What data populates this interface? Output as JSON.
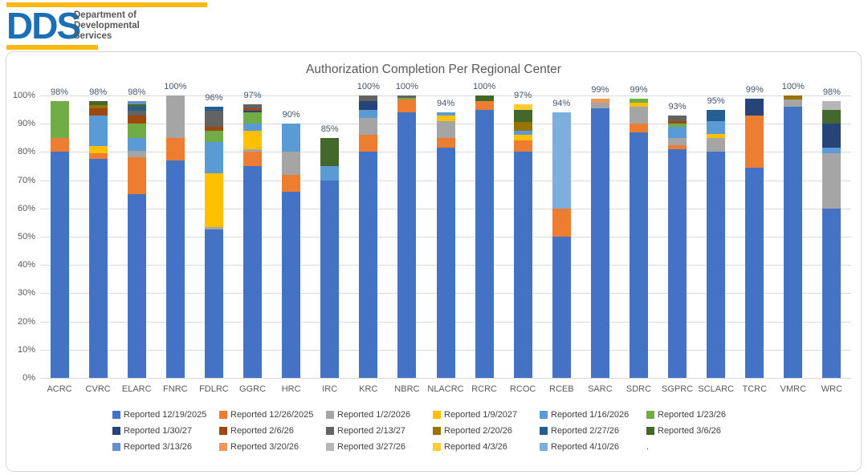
{
  "header": {
    "logo_acronym": "DDS",
    "logo_lines": "Department of\nDevelopmental\nServices",
    "logo_blue": "#1B6FB5",
    "logo_yellow": "#FDB813"
  },
  "chart_data": {
    "type": "bar",
    "subtype": "stacked-percent",
    "title": "Authorization Completion Per Regional Center",
    "xlabel": "",
    "ylabel": "",
    "ylim": [
      0,
      100
    ],
    "ytick_labels": [
      "0%",
      "10%",
      "20%",
      "30%",
      "40%",
      "50%",
      "60%",
      "70%",
      "80%",
      "90%",
      "100%"
    ],
    "grid": true,
    "legend_position": "bottom",
    "series": [
      {
        "name": "Reported 12/19/2025",
        "color": "#4472C4"
      },
      {
        "name": "Reported 12/26/2025",
        "color": "#ED7D31"
      },
      {
        "name": "Reported 1/2/2026",
        "color": "#A5A5A5"
      },
      {
        "name": "Reported 1/9/2027",
        "color": "#FFC000"
      },
      {
        "name": "Reported 1/16/2026",
        "color": "#5B9BD5"
      },
      {
        "name": "Reported 1/23/26",
        "color": "#70AD47"
      },
      {
        "name": "Reported 1/30/27",
        "color": "#264478"
      },
      {
        "name": "Reported 2/6/26",
        "color": "#9E480E"
      },
      {
        "name": "Reported 2/13/27",
        "color": "#636363"
      },
      {
        "name": "Reported 2/20/26",
        "color": "#997300"
      },
      {
        "name": "Reported 2/27/26",
        "color": "#255E91"
      },
      {
        "name": "Reported 3/6/26",
        "color": "#43682B"
      },
      {
        "name": "Reported 3/13/26",
        "color": "#698ED0"
      },
      {
        "name": "Reported 3/20/26",
        "color": "#F1975A"
      },
      {
        "name": "Reported 3/27/26",
        "color": "#B7B7B7"
      },
      {
        "name": "Reported 4/3/26",
        "color": "#FFCD33"
      },
      {
        "name": "Reported 4/10/26",
        "color": "#7CAFDD"
      }
    ],
    "categories": [
      "ACRC",
      "CVRC",
      "ELARC",
      "FNRC",
      "FDLRC",
      "GGRC",
      "HRC",
      "IRC",
      "KRC",
      "NBRC",
      "NLACRC",
      "RCRC",
      "RCOC",
      "RCEB",
      "SARC",
      "SDRC",
      "SGPRC",
      "SCLARC",
      "TCRC",
      "VMRC",
      "WRC"
    ],
    "bars": [
      {
        "category": "ACRC",
        "total_label": "98%",
        "segments": [
          {
            "series": "Reported 12/19/2025",
            "value": 80
          },
          {
            "series": "Reported 12/26/2025",
            "value": 5
          },
          {
            "series": "Reported 1/23/26",
            "value": 13
          }
        ]
      },
      {
        "category": "CVRC",
        "total_label": "98%",
        "segments": [
          {
            "series": "Reported 12/19/2025",
            "value": 77.5
          },
          {
            "series": "Reported 12/26/2025",
            "value": 2
          },
          {
            "series": "Reported 1/9/2027",
            "value": 2.5
          },
          {
            "series": "Reported 1/16/2026",
            "value": 11
          },
          {
            "series": "Reported 2/6/26",
            "value": 2.5
          },
          {
            "series": "Reported 2/20/26",
            "value": 1
          },
          {
            "series": "Reported 3/6/26",
            "value": 1.5
          }
        ]
      },
      {
        "category": "ELARC",
        "total_label": "98%",
        "segments": [
          {
            "series": "Reported 12/19/2025",
            "value": 65
          },
          {
            "series": "Reported 12/26/2025",
            "value": 13
          },
          {
            "series": "Reported 1/2/2026",
            "value": 2.5
          },
          {
            "series": "Reported 1/16/2026",
            "value": 4.5
          },
          {
            "series": "Reported 1/23/26",
            "value": 5
          },
          {
            "series": "Reported 2/6/26",
            "value": 3
          },
          {
            "series": "Reported 2/13/27",
            "value": 1.5
          },
          {
            "series": "Reported 2/27/26",
            "value": 1.5
          },
          {
            "series": "Reported 3/6/26",
            "value": 1
          },
          {
            "series": "Reported 3/13/26",
            "value": 1
          }
        ]
      },
      {
        "category": "FNRC",
        "total_label": "100%",
        "segments": [
          {
            "series": "Reported 12/19/2025",
            "value": 77
          },
          {
            "series": "Reported 12/26/2025",
            "value": 8
          },
          {
            "series": "Reported 1/2/2026",
            "value": 15
          }
        ]
      },
      {
        "category": "FDLRC",
        "total_label": "96%",
        "segments": [
          {
            "series": "Reported 12/19/2025",
            "value": 52.5
          },
          {
            "series": "Reported 1/2/2026",
            "value": 1
          },
          {
            "series": "Reported 1/9/2027",
            "value": 19
          },
          {
            "series": "Reported 1/16/2026",
            "value": 11
          },
          {
            "series": "Reported 1/23/26",
            "value": 4
          },
          {
            "series": "Reported 2/6/26",
            "value": 1.5
          },
          {
            "series": "Reported 2/13/27",
            "value": 5.5
          },
          {
            "series": "Reported 2/27/26",
            "value": 1.5
          }
        ]
      },
      {
        "category": "GGRC",
        "total_label": "97%",
        "segments": [
          {
            "series": "Reported 12/19/2025",
            "value": 75
          },
          {
            "series": "Reported 12/26/2025",
            "value": 5
          },
          {
            "series": "Reported 1/2/2026",
            "value": 1
          },
          {
            "series": "Reported 1/9/2027",
            "value": 6.5
          },
          {
            "series": "Reported 1/16/2026",
            "value": 2.5
          },
          {
            "series": "Reported 1/23/26",
            "value": 4
          },
          {
            "series": "Reported 1/30/27",
            "value": 0.75
          },
          {
            "series": "Reported 2/6/26",
            "value": 0.75
          },
          {
            "series": "Reported 2/13/27",
            "value": 1.5
          }
        ]
      },
      {
        "category": "HRC",
        "total_label": "90%",
        "segments": [
          {
            "series": "Reported 12/19/2025",
            "value": 66
          },
          {
            "series": "Reported 12/26/2025",
            "value": 6
          },
          {
            "series": "Reported 1/2/2026",
            "value": 8
          },
          {
            "series": "Reported 1/16/2026",
            "value": 10
          }
        ]
      },
      {
        "category": "IRC",
        "total_label": "85%",
        "segments": [
          {
            "series": "Reported 12/19/2025",
            "value": 70
          },
          {
            "series": "Reported 1/16/2026",
            "value": 5
          },
          {
            "series": "Reported 3/6/26",
            "value": 10
          }
        ]
      },
      {
        "category": "KRC",
        "total_label": "100%",
        "segments": [
          {
            "series": "Reported 12/19/2025",
            "value": 80
          },
          {
            "series": "Reported 12/26/2025",
            "value": 6
          },
          {
            "series": "Reported 1/2/2026",
            "value": 6
          },
          {
            "series": "Reported 1/16/2026",
            "value": 3
          },
          {
            "series": "Reported 1/30/27",
            "value": 3
          },
          {
            "series": "Reported 2/13/27",
            "value": 2
          }
        ]
      },
      {
        "category": "NBRC",
        "total_label": "100%",
        "segments": [
          {
            "series": "Reported 12/19/2025",
            "value": 94
          },
          {
            "series": "Reported 12/26/2025",
            "value": 4.5
          },
          {
            "series": "Reported 1/23/26",
            "value": 0.75
          },
          {
            "series": "Reported 2/13/27",
            "value": 0.75
          }
        ]
      },
      {
        "category": "NLACRC",
        "total_label": "94%",
        "segments": [
          {
            "series": "Reported 12/19/2025",
            "value": 81.5
          },
          {
            "series": "Reported 12/26/2025",
            "value": 3.5
          },
          {
            "series": "Reported 1/2/2026",
            "value": 6
          },
          {
            "series": "Reported 1/9/2027",
            "value": 2
          },
          {
            "series": "Reported 1/16/2026",
            "value": 1
          }
        ]
      },
      {
        "category": "RCRC",
        "total_label": "100%",
        "segments": [
          {
            "series": "Reported 12/19/2025",
            "value": 95
          },
          {
            "series": "Reported 12/26/2025",
            "value": 3
          },
          {
            "series": "Reported 3/6/26",
            "value": 2
          }
        ]
      },
      {
        "category": "RCOC",
        "total_label": "97%",
        "segments": [
          {
            "series": "Reported 12/19/2025",
            "value": 80
          },
          {
            "series": "Reported 12/26/2025",
            "value": 4
          },
          {
            "series": "Reported 1/9/2027",
            "value": 2
          },
          {
            "series": "Reported 1/16/2026",
            "value": 1.5
          },
          {
            "series": "Reported 2/20/26",
            "value": 3
          },
          {
            "series": "Reported 3/6/26",
            "value": 4.5
          },
          {
            "series": "Reported 4/3/26",
            "value": 2
          }
        ]
      },
      {
        "category": "RCEB",
        "total_label": "94%",
        "segments": [
          {
            "series": "Reported 12/19/2025",
            "value": 50
          },
          {
            "series": "Reported 12/26/2025",
            "value": 10
          },
          {
            "series": "Reported 4/10/26",
            "value": 34
          }
        ]
      },
      {
        "category": "SARC",
        "total_label": "99%",
        "segments": [
          {
            "series": "Reported 12/19/2025",
            "value": 95.5
          },
          {
            "series": "Reported 1/2/2026",
            "value": 2
          },
          {
            "series": "Reported 3/20/26",
            "value": 1.5
          }
        ]
      },
      {
        "category": "SDRC",
        "total_label": "99%",
        "segments": [
          {
            "series": "Reported 12/19/2025",
            "value": 87
          },
          {
            "series": "Reported 12/26/2025",
            "value": 3
          },
          {
            "series": "Reported 1/2/2026",
            "value": 6
          },
          {
            "series": "Reported 1/9/2027",
            "value": 1.5
          },
          {
            "series": "Reported 1/23/26",
            "value": 1.5
          }
        ]
      },
      {
        "category": "SGPRC",
        "total_label": "93%",
        "segments": [
          {
            "series": "Reported 12/19/2025",
            "value": 81
          },
          {
            "series": "Reported 12/26/2025",
            "value": 1.5
          },
          {
            "series": "Reported 1/2/2026",
            "value": 2.5
          },
          {
            "series": "Reported 1/16/2026",
            "value": 4
          },
          {
            "series": "Reported 1/23/26",
            "value": 1
          },
          {
            "series": "Reported 2/6/26",
            "value": 1
          },
          {
            "series": "Reported 2/13/27",
            "value": 2
          }
        ]
      },
      {
        "category": "SCLARC",
        "total_label": "95%",
        "segments": [
          {
            "series": "Reported 12/19/2025",
            "value": 80
          },
          {
            "series": "Reported 1/2/2026",
            "value": 5
          },
          {
            "series": "Reported 1/9/2027",
            "value": 1.5
          },
          {
            "series": "Reported 1/16/2026",
            "value": 4.5
          },
          {
            "series": "Reported 2/27/26",
            "value": 4
          }
        ]
      },
      {
        "category": "TCRC",
        "total_label": "99%",
        "segments": [
          {
            "series": "Reported 12/19/2025",
            "value": 74.5
          },
          {
            "series": "Reported 12/26/2025",
            "value": 18.5
          },
          {
            "series": "Reported 1/30/27",
            "value": 6
          }
        ]
      },
      {
        "category": "VMRC",
        "total_label": "100%",
        "segments": [
          {
            "series": "Reported 12/19/2025",
            "value": 96
          },
          {
            "series": "Reported 1/2/2026",
            "value": 2.5
          },
          {
            "series": "Reported 2/20/26",
            "value": 1.5
          }
        ]
      },
      {
        "category": "WRC",
        "total_label": "98%",
        "segments": [
          {
            "series": "Reported 12/19/2025",
            "value": 60
          },
          {
            "series": "Reported 1/2/2026",
            "value": 19.5
          },
          {
            "series": "Reported 1/16/2026",
            "value": 2
          },
          {
            "series": "Reported 1/30/27",
            "value": 8.5
          },
          {
            "series": "Reported 3/6/26",
            "value": 5
          },
          {
            "series": "Reported 3/27/26",
            "value": 3
          }
        ]
      }
    ],
    "legend_rows": [
      [
        "Reported 12/19/2025",
        "Reported 12/26/2025",
        "Reported 1/2/2026",
        "Reported 1/9/2027",
        "Reported 1/16/2026",
        "Reported 1/23/26"
      ],
      [
        "Reported 1/30/27",
        "Reported 2/6/26",
        "Reported 2/13/27",
        "Reported 2/20/26",
        "Reported 2/27/26",
        "Reported 3/6/26"
      ],
      [
        "Reported 3/13/26",
        "Reported 3/20/26",
        "Reported 3/27/26",
        "Reported 4/3/26",
        "Reported 4/10/26",
        "."
      ]
    ]
  }
}
